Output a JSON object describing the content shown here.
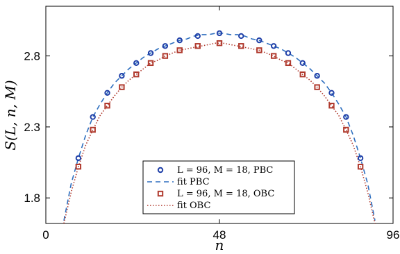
{
  "chart_data": {
    "type": "scatter",
    "xlabel": "n",
    "ylabel": "S(L, n, M)",
    "xlim": [
      0,
      96
    ],
    "ylim": [
      1.62,
      3.15
    ],
    "xticks": [
      0,
      48,
      96
    ],
    "yticks": [
      1.8,
      2.3,
      2.8
    ],
    "xtick_labels": [
      "0",
      "48",
      "96"
    ],
    "ytick_labels": [
      "1.8",
      "2.3",
      "2.8"
    ],
    "grid": false,
    "legend_position": "bottom-center",
    "series": [
      {
        "name": "L = 96, M = 18, PBC",
        "kind": "markers",
        "marker": "circle",
        "color": "#1f3fa8",
        "x": [
          9,
          13,
          17,
          21,
          25,
          29,
          33,
          37,
          42,
          48,
          54,
          59,
          63,
          67,
          71,
          75,
          79,
          83,
          87
        ],
        "y": [
          2.08,
          2.37,
          2.54,
          2.66,
          2.75,
          2.82,
          2.87,
          2.91,
          2.94,
          2.96,
          2.94,
          2.91,
          2.87,
          2.82,
          2.75,
          2.66,
          2.54,
          2.37,
          2.08
        ]
      },
      {
        "name": "fit PBC",
        "kind": "line",
        "dash": "dashed",
        "color": "#2e6fbf",
        "x": [
          5,
          7,
          9,
          11,
          13,
          15,
          17,
          19,
          21,
          23,
          25,
          27,
          29,
          31,
          33,
          35,
          37,
          39,
          41,
          43,
          45,
          47,
          48,
          49,
          51,
          53,
          55,
          57,
          59,
          61,
          63,
          65,
          67,
          69,
          71,
          73,
          75,
          77,
          79,
          81,
          83,
          85,
          87,
          89,
          91
        ],
        "y": [
          1.64,
          1.9,
          2.08,
          2.24,
          2.37,
          2.46,
          2.54,
          2.61,
          2.66,
          2.71,
          2.75,
          2.79,
          2.82,
          2.85,
          2.87,
          2.89,
          2.91,
          2.92,
          2.94,
          2.95,
          2.95,
          2.96,
          2.96,
          2.96,
          2.95,
          2.95,
          2.94,
          2.92,
          2.91,
          2.89,
          2.87,
          2.85,
          2.82,
          2.79,
          2.75,
          2.71,
          2.66,
          2.61,
          2.54,
          2.46,
          2.37,
          2.24,
          2.08,
          1.9,
          1.64
        ]
      },
      {
        "name": "L = 96, M = 18, OBC",
        "kind": "markers",
        "marker": "square",
        "color": "#b03a2e",
        "x": [
          9,
          13,
          17,
          21,
          25,
          29,
          33,
          37,
          42,
          48,
          54,
          59,
          63,
          67,
          71,
          75,
          79,
          83,
          87
        ],
        "y": [
          2.02,
          2.28,
          2.45,
          2.58,
          2.67,
          2.75,
          2.8,
          2.84,
          2.87,
          2.89,
          2.87,
          2.84,
          2.8,
          2.75,
          2.67,
          2.58,
          2.45,
          2.28,
          2.02
        ]
      },
      {
        "name": "fit OBC",
        "kind": "line",
        "dash": "dotted",
        "color": "#b03a2e",
        "x": [
          5,
          7,
          9,
          11,
          13,
          15,
          17,
          19,
          21,
          23,
          25,
          27,
          29,
          31,
          33,
          35,
          37,
          39,
          41,
          43,
          45,
          47,
          48,
          49,
          51,
          53,
          55,
          57,
          59,
          61,
          63,
          65,
          67,
          69,
          71,
          73,
          75,
          77,
          79,
          81,
          83,
          85,
          87,
          89,
          91
        ],
        "y": [
          1.62,
          1.84,
          2.02,
          2.17,
          2.28,
          2.38,
          2.45,
          2.52,
          2.58,
          2.63,
          2.67,
          2.71,
          2.75,
          2.77,
          2.8,
          2.82,
          2.84,
          2.85,
          2.86,
          2.87,
          2.88,
          2.89,
          2.89,
          2.89,
          2.88,
          2.87,
          2.86,
          2.85,
          2.84,
          2.82,
          2.8,
          2.77,
          2.75,
          2.71,
          2.67,
          2.63,
          2.58,
          2.52,
          2.45,
          2.38,
          2.28,
          2.17,
          2.02,
          1.84,
          1.62
        ]
      }
    ]
  }
}
